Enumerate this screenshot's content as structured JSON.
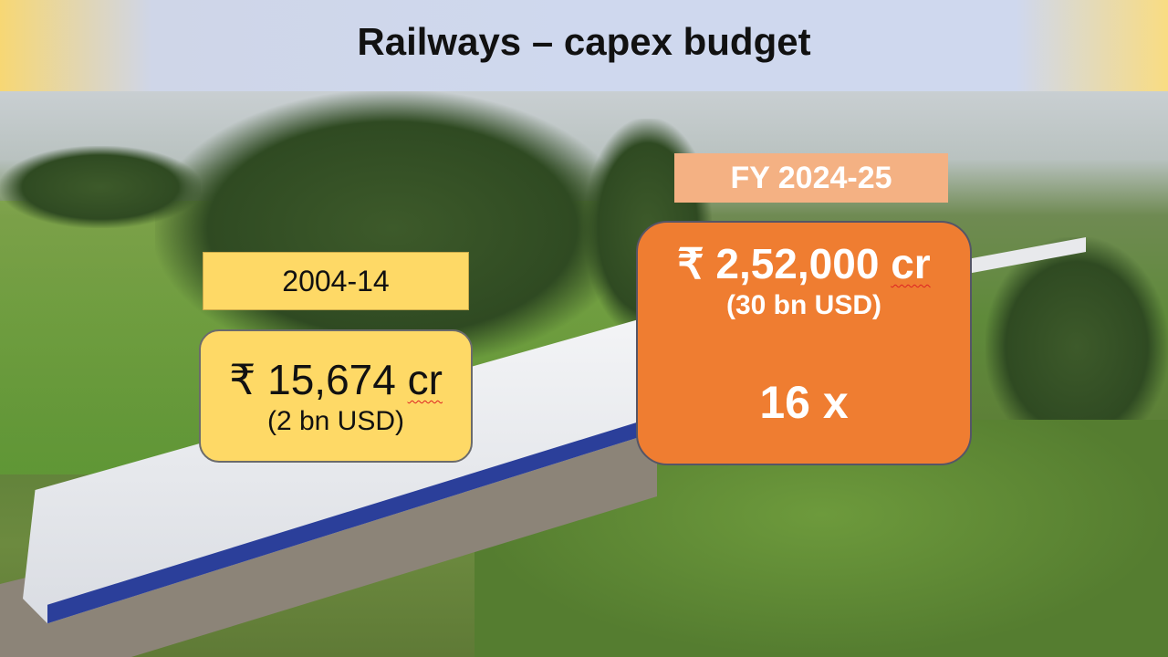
{
  "slide": {
    "title": "Railways – capex budget"
  },
  "period_2004_14": {
    "label": "2004-14",
    "currency": "₹",
    "amount": "15,674",
    "unit": "cr",
    "usd": "(2 bn USD)"
  },
  "period_fy2024_25": {
    "label": "FY 2024-25",
    "currency": "₹",
    "amount": "2,52,000",
    "unit": "cr",
    "usd": "(30 bn USD)",
    "multiplier": "16 x"
  },
  "colors": {
    "old_box": "#fed966",
    "new_label": "#f4b183",
    "new_box": "#ef7d31"
  }
}
